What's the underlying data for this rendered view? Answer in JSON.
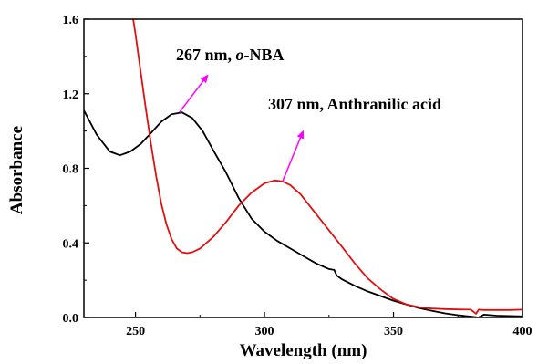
{
  "chart_data": {
    "type": "line",
    "xlabel": "Wavelength (nm)",
    "ylabel": "Absorbance",
    "xlim": [
      230,
      400
    ],
    "ylim": [
      0.0,
      1.6
    ],
    "x_ticks": [
      250,
      300,
      350,
      400
    ],
    "y_ticks": [
      0.0,
      0.4,
      0.8,
      1.2,
      1.6
    ],
    "x_tick_labels": [
      "250",
      "300",
      "350",
      "400"
    ],
    "y_tick_labels": [
      "0.0",
      "0.4",
      "0.8",
      "1.2",
      "1.6"
    ],
    "grid": false,
    "series": [
      {
        "color": "#000000",
        "x": [
          230,
          235,
          240,
          244,
          248,
          252,
          256,
          260,
          264,
          268,
          272,
          276,
          280,
          285,
          290,
          295,
          300,
          305,
          310,
          315,
          320,
          325,
          327,
          328,
          330,
          335,
          340,
          345,
          350,
          355,
          360,
          365,
          370,
          375,
          380,
          383,
          385,
          390,
          395,
          400
        ],
        "y": [
          1.11,
          0.98,
          0.89,
          0.87,
          0.89,
          0.93,
          0.99,
          1.05,
          1.09,
          1.1,
          1.07,
          1.0,
          0.9,
          0.78,
          0.64,
          0.53,
          0.46,
          0.41,
          0.37,
          0.33,
          0.29,
          0.26,
          0.255,
          0.225,
          0.205,
          0.17,
          0.14,
          0.115,
          0.09,
          0.07,
          0.05,
          0.035,
          0.022,
          0.012,
          0.005,
          0.0,
          0.015,
          0.01,
          0.008,
          0.006
        ]
      },
      {
        "color": "#e01010",
        "x": [
          248,
          250,
          252,
          254,
          256,
          258,
          260,
          262,
          264,
          266,
          268,
          270,
          272,
          275,
          280,
          285,
          290,
          295,
          300,
          304,
          307,
          310,
          314,
          318,
          322,
          326,
          330,
          335,
          340,
          345,
          350,
          355,
          360,
          365,
          370,
          375,
          380,
          382,
          383,
          385,
          390,
          395,
          400
        ],
        "y": [
          1.7,
          1.52,
          1.32,
          1.12,
          0.93,
          0.76,
          0.61,
          0.5,
          0.42,
          0.37,
          0.35,
          0.345,
          0.35,
          0.37,
          0.43,
          0.51,
          0.6,
          0.67,
          0.72,
          0.735,
          0.73,
          0.71,
          0.66,
          0.59,
          0.52,
          0.45,
          0.38,
          0.29,
          0.21,
          0.15,
          0.1,
          0.07,
          0.055,
          0.048,
          0.045,
          0.043,
          0.042,
          0.02,
          0.042,
          0.04,
          0.04,
          0.04,
          0.042
        ]
      }
    ],
    "annotations": [
      {
        "text_parts": [
          "267 nm, ",
          "o",
          "-NBA"
        ],
        "italic_part": 1,
        "point_x": 267,
        "point_y": 1.1,
        "arrow_to_x": 278,
        "arrow_to_y": 1.3
      },
      {
        "text_parts": [
          "307 nm, Anthranilic acid"
        ],
        "italic_part": -1,
        "point_x": 307,
        "point_y": 0.73,
        "arrow_to_x": 315,
        "arrow_to_y": 1.0
      }
    ],
    "arrow_color": "#ff00ff"
  }
}
